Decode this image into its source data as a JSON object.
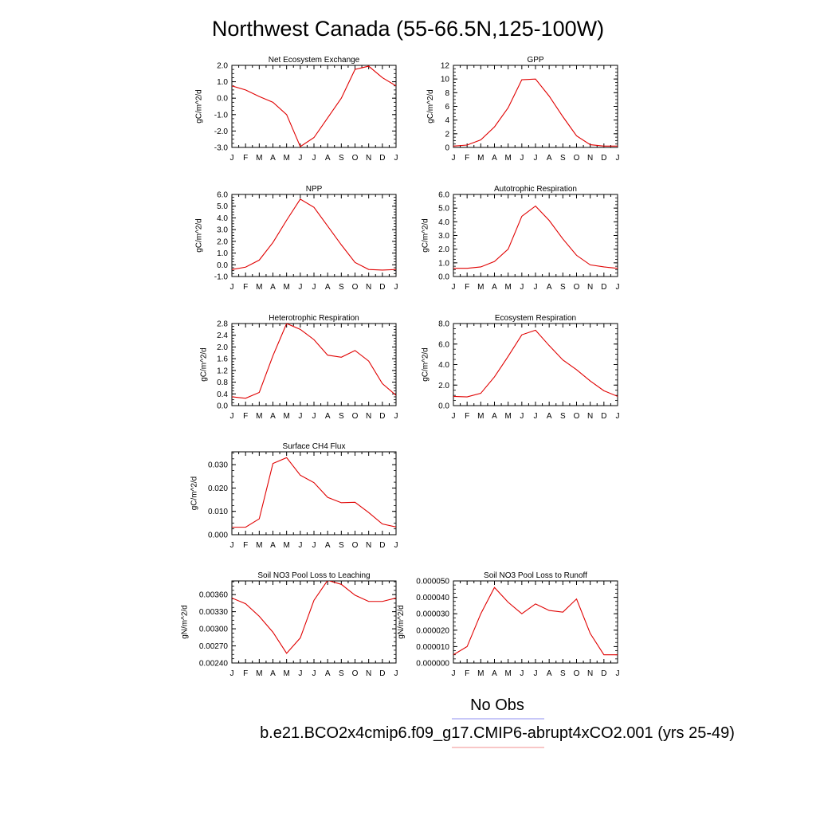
{
  "figure": {
    "title": "Northwest Canada (55-66.5N,125-100W)",
    "legend": [
      {
        "label": "No Obs",
        "color": "#8f8ff0"
      },
      {
        "label": "b.e21.BCO2x4cmip6.f09_g17.CMIP6-abrupt4xCO2.001 (yrs 25-49)",
        "color": "#f08f8f"
      }
    ]
  },
  "chart_data": [
    {
      "type": "line",
      "title": "Net Ecosystem Exchange",
      "ylabel": "gC/m^2/d",
      "categories": [
        "J",
        "F",
        "M",
        "A",
        "M",
        "J",
        "J",
        "A",
        "S",
        "O",
        "N",
        "D",
        "J"
      ],
      "ylim": [
        -3.0,
        2.0
      ],
      "yticks": [
        -3.0,
        -2.0,
        -1.0,
        0.0,
        1.0,
        2.0
      ],
      "ytick_labels": [
        "-3.0",
        "-2.0",
        "-1.0",
        "0.0",
        "1.0",
        "2.0"
      ],
      "series": [
        {
          "color": "#e00000",
          "values": [
            0.75,
            0.5,
            0.1,
            -0.25,
            -1.0,
            -2.95,
            -2.4,
            -1.2,
            0.0,
            1.75,
            1.95,
            1.25,
            0.75
          ]
        }
      ]
    },
    {
      "type": "line",
      "title": "GPP",
      "ylabel": "gC/m^2/d",
      "categories": [
        "J",
        "F",
        "M",
        "A",
        "M",
        "J",
        "J",
        "A",
        "S",
        "O",
        "N",
        "D",
        "J"
      ],
      "ylim": [
        0,
        12
      ],
      "yticks": [
        0,
        2,
        4,
        6,
        8,
        10,
        12
      ],
      "ytick_labels": [
        "0",
        "2",
        "4",
        "6",
        "8",
        "10",
        "12"
      ],
      "series": [
        {
          "color": "#e00000",
          "values": [
            0.2,
            0.35,
            1.1,
            3.0,
            5.8,
            9.9,
            10.0,
            7.5,
            4.5,
            1.7,
            0.4,
            0.2,
            0.2
          ]
        }
      ]
    },
    {
      "type": "line",
      "title": "NPP",
      "ylabel": "gC/m^2/d",
      "categories": [
        "J",
        "F",
        "M",
        "A",
        "M",
        "J",
        "J",
        "A",
        "S",
        "O",
        "N",
        "D",
        "J"
      ],
      "ylim": [
        -1.0,
        6.0
      ],
      "yticks": [
        -1.0,
        0.0,
        1.0,
        2.0,
        3.0,
        4.0,
        5.0,
        6.0
      ],
      "ytick_labels": [
        "-1.0",
        "0.0",
        "1.0",
        "2.0",
        "3.0",
        "4.0",
        "5.0",
        "6.0"
      ],
      "series": [
        {
          "color": "#e00000",
          "values": [
            -0.4,
            -0.2,
            0.4,
            1.9,
            3.8,
            5.6,
            4.9,
            3.3,
            1.7,
            0.2,
            -0.4,
            -0.45,
            -0.4
          ]
        }
      ]
    },
    {
      "type": "line",
      "title": "Autotrophic Respiration",
      "ylabel": "gC/m^2/d",
      "categories": [
        "J",
        "F",
        "M",
        "A",
        "M",
        "J",
        "J",
        "A",
        "S",
        "O",
        "N",
        "D",
        "J"
      ],
      "ylim": [
        0,
        6.0
      ],
      "yticks": [
        0.0,
        1.0,
        2.0,
        3.0,
        4.0,
        5.0,
        6.0
      ],
      "ytick_labels": [
        "0.0",
        "1.0",
        "2.0",
        "3.0",
        "4.0",
        "5.0",
        "6.0"
      ],
      "series": [
        {
          "color": "#e00000",
          "values": [
            0.6,
            0.6,
            0.7,
            1.1,
            2.0,
            4.4,
            5.15,
            4.1,
            2.75,
            1.55,
            0.85,
            0.7,
            0.6
          ]
        }
      ]
    },
    {
      "type": "line",
      "title": "Heterotrophic Respiration",
      "ylabel": "gC/m^2/d",
      "categories": [
        "J",
        "F",
        "M",
        "A",
        "M",
        "J",
        "J",
        "A",
        "S",
        "O",
        "N",
        "D",
        "J"
      ],
      "ylim": [
        0,
        2.8
      ],
      "yticks": [
        0.0,
        0.4,
        0.8,
        1.2,
        1.6,
        2.0,
        2.4,
        2.8
      ],
      "ytick_labels": [
        "0.0",
        "0.4",
        "0.8",
        "1.2",
        "1.6",
        "2.0",
        "2.4",
        "2.8"
      ],
      "series": [
        {
          "color": "#e00000",
          "values": [
            0.3,
            0.25,
            0.45,
            1.7,
            2.8,
            2.6,
            2.25,
            1.72,
            1.65,
            1.88,
            1.52,
            0.75,
            0.35
          ]
        }
      ]
    },
    {
      "type": "line",
      "title": "Ecosystem Respiration",
      "ylabel": "gC/m^2/d",
      "categories": [
        "J",
        "F",
        "M",
        "A",
        "M",
        "J",
        "J",
        "A",
        "S",
        "O",
        "N",
        "D",
        "J"
      ],
      "ylim": [
        0,
        8.0
      ],
      "yticks": [
        0.0,
        2.0,
        4.0,
        6.0,
        8.0
      ],
      "ytick_labels": [
        "0.0",
        "2.0",
        "4.0",
        "6.0",
        "8.0"
      ],
      "series": [
        {
          "color": "#e00000",
          "values": [
            0.9,
            0.85,
            1.2,
            2.8,
            4.8,
            6.9,
            7.35,
            5.85,
            4.45,
            3.5,
            2.4,
            1.45,
            0.9
          ]
        }
      ]
    },
    {
      "type": "line",
      "title": "Surface CH4 Flux",
      "ylabel": "gC/m^2/d",
      "categories": [
        "J",
        "F",
        "M",
        "A",
        "M",
        "J",
        "J",
        "A",
        "S",
        "O",
        "N",
        "D",
        "J"
      ],
      "ylim": [
        0.0,
        0.0355
      ],
      "yticks": [
        0.0,
        0.01,
        0.02,
        0.03
      ],
      "ytick_labels": [
        "0.000",
        "0.010",
        "0.020",
        "0.030"
      ],
      "series": [
        {
          "color": "#e00000",
          "values": [
            0.0032,
            0.0032,
            0.0068,
            0.0305,
            0.033,
            0.0255,
            0.0223,
            0.016,
            0.0137,
            0.0139,
            0.0095,
            0.0046,
            0.0033
          ]
        }
      ]
    },
    {
      "type": "line",
      "title": "Soil NO3 Pool Loss to Leaching",
      "ylabel": "gN/m^2/d",
      "categories": [
        "J",
        "F",
        "M",
        "A",
        "M",
        "J",
        "J",
        "A",
        "S",
        "O",
        "N",
        "D",
        "J"
      ],
      "ylim": [
        0.0024,
        0.00384
      ],
      "yticks": [
        0.0024,
        0.0027,
        0.003,
        0.0033,
        0.0036
      ],
      "ytick_labels": [
        "0.00240",
        "0.00270",
        "0.00300",
        "0.00330",
        "0.00360"
      ],
      "series": [
        {
          "color": "#e00000",
          "values": [
            0.00354,
            0.00344,
            0.00322,
            0.00294,
            0.00257,
            0.00284,
            0.0035,
            0.00385,
            0.00378,
            0.00359,
            0.00348,
            0.00348,
            0.00354
          ]
        }
      ]
    },
    {
      "type": "line",
      "title": "Soil NO3 Pool Loss to Runoff",
      "ylabel": "gN/m^2/d",
      "categories": [
        "J",
        "F",
        "M",
        "A",
        "M",
        "J",
        "J",
        "A",
        "S",
        "O",
        "N",
        "D",
        "J"
      ],
      "ylim": [
        0.0,
        5e-05
      ],
      "yticks": [
        0.0,
        1e-05,
        2e-05,
        3e-05,
        4e-05,
        5e-05
      ],
      "ytick_labels": [
        "0.000000",
        "0.000010",
        "0.000020",
        "0.000030",
        "0.000040",
        "0.000050"
      ],
      "series": [
        {
          "color": "#e00000",
          "values": [
            5e-06,
            1e-05,
            3e-05,
            4.6e-05,
            3.7e-05,
            3e-05,
            3.6e-05,
            3.2e-05,
            3.1e-05,
            3.9e-05,
            1.8e-05,
            5e-06,
            5e-06
          ]
        }
      ]
    }
  ]
}
